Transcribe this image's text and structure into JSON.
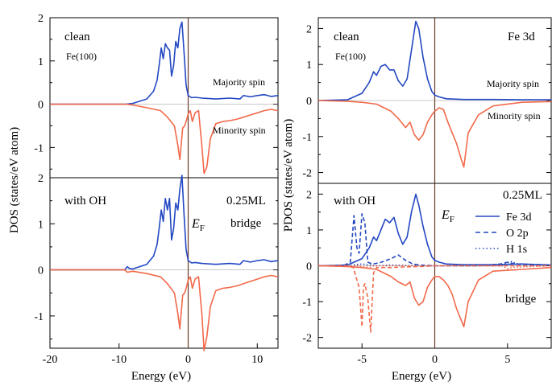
{
  "colors": {
    "majority": "#2348c3",
    "minority": "#f2694a",
    "axis": "#000000",
    "fermi": "#6b3a2a"
  },
  "left": {
    "ylabel": "DOS (states/eV atom)",
    "xlabel": "Energy (eV)",
    "xticks": [
      "-20",
      "-10",
      "0",
      "10"
    ],
    "top": {
      "yticks": [
        "2",
        "1",
        "0",
        "-1"
      ],
      "labels": {
        "title": "clean",
        "sub": "Fe(100)",
        "maj": "Majority spin",
        "min": "Minority spin"
      }
    },
    "bottom": {
      "yticks": [
        "2",
        "1",
        "0",
        "-1"
      ],
      "labels": {
        "title": "with OH",
        "coverage": "0.25ML",
        "site": "bridge",
        "ef": "E",
        "ef_sub": "F"
      }
    }
  },
  "right": {
    "ylabel": "PDOS (states/eV atom)",
    "xlabel": "Energy (eV)",
    "xticks": [
      "-5",
      "0",
      "5"
    ],
    "top": {
      "yticks": [
        "2",
        "1",
        "0",
        "-1",
        "-2"
      ],
      "labels": {
        "title": "clean",
        "sub": "Fe(100)",
        "orbital": "Fe 3d",
        "maj": "Majority spin",
        "min": "Minority spin"
      }
    },
    "bottom": {
      "yticks": [
        "2",
        "1",
        "0",
        "-1",
        "-2"
      ],
      "labels": {
        "title": "with OH",
        "coverage": "0.25ML",
        "site": "bridge",
        "ef": "E",
        "ef_sub": "F"
      },
      "legend": [
        "Fe 3d",
        "O 2p",
        "H 1s"
      ]
    }
  },
  "chart_data": [
    {
      "type": "line",
      "panel": "left-top",
      "xlabel": "Energy (eV)",
      "ylabel": "DOS (states/eV atom)",
      "xlim": [
        -20,
        13
      ],
      "ylim": [
        -1.7,
        2.0
      ],
      "series": [
        {
          "name": "Majority spin",
          "x": [
            -20,
            -9,
            -8,
            -6,
            -5,
            -4.5,
            -4.2,
            -3.9,
            -3.6,
            -3.3,
            -3.0,
            -2.7,
            -2.4,
            -2.1,
            -1.8,
            -1.5,
            -1.2,
            -0.9,
            -0.6,
            -0.3,
            0,
            0.5,
            1,
            2,
            4,
            6,
            7.5,
            8,
            9,
            10,
            11,
            12,
            13
          ],
          "y": [
            0,
            0,
            0.02,
            0.12,
            0.3,
            0.55,
            0.9,
            1.3,
            1.05,
            1.4,
            1.3,
            1.25,
            0.65,
            0.9,
            1.45,
            1.3,
            1.75,
            1.9,
            1.2,
            0.45,
            0.2,
            0.15,
            0.16,
            0.14,
            0.12,
            0.14,
            0.12,
            0.2,
            0.17,
            0.2,
            0.22,
            0.18,
            0.2
          ]
        },
        {
          "name": "Minority spin",
          "x": [
            -20,
            -9,
            -8,
            -6,
            -4,
            -3,
            -2,
            -1.5,
            -1.2,
            -0.8,
            -0.5,
            -0.2,
            0,
            0.3,
            0.6,
            1.0,
            1.5,
            2.0,
            2.3,
            2.7,
            3.2,
            4,
            5,
            6,
            7,
            8,
            9,
            10,
            11,
            12,
            13
          ],
          "y": [
            0,
            0,
            -0.02,
            -0.08,
            -0.15,
            -0.3,
            -0.5,
            -0.95,
            -1.28,
            -0.55,
            -0.5,
            -0.35,
            -0.22,
            -0.15,
            -0.4,
            -0.2,
            -0.15,
            -1.0,
            -1.6,
            -1.45,
            -0.8,
            -0.45,
            -0.4,
            -0.38,
            -0.35,
            -0.3,
            -0.25,
            -0.2,
            -0.15,
            -0.12,
            -0.15
          ]
        }
      ]
    },
    {
      "type": "line",
      "panel": "left-bottom",
      "xlabel": "Energy (eV)",
      "ylabel": "DOS (states/eV atom)",
      "xlim": [
        -20,
        13
      ],
      "ylim": [
        -1.7,
        2.0
      ],
      "series": [
        {
          "name": "Majority spin",
          "x": [
            -20,
            -9.2,
            -8.8,
            -8.5,
            -8,
            -6,
            -5,
            -4.5,
            -4.2,
            -3.9,
            -3.6,
            -3.3,
            -3.0,
            -2.7,
            -2.4,
            -2.1,
            -1.8,
            -1.5,
            -1.2,
            -0.9,
            -0.6,
            -0.3,
            0,
            0.5,
            1,
            2,
            4,
            6,
            7.5,
            8,
            9,
            10,
            11,
            12,
            13
          ],
          "y": [
            0,
            0,
            0.07,
            0.03,
            0.02,
            0.12,
            0.3,
            0.55,
            0.9,
            1.3,
            1.05,
            1.55,
            1.3,
            1.55,
            0.65,
            0.9,
            1.45,
            1.3,
            1.75,
            2.05,
            1.2,
            0.45,
            0.2,
            0.15,
            0.16,
            0.14,
            0.12,
            0.14,
            0.12,
            0.2,
            0.17,
            0.2,
            0.22,
            0.18,
            0.2
          ]
        },
        {
          "name": "Minority spin",
          "x": [
            -20,
            -9.2,
            -8.8,
            -8,
            -6,
            -4,
            -3,
            -2,
            -1.5,
            -1.2,
            -0.8,
            -0.5,
            -0.2,
            0,
            0.3,
            0.6,
            1.0,
            1.5,
            2.0,
            2.3,
            2.7,
            3.2,
            4,
            5,
            6,
            7,
            8,
            9,
            10,
            11,
            12,
            13
          ],
          "y": [
            0,
            0,
            -0.05,
            -0.03,
            -0.08,
            -0.15,
            -0.3,
            -0.5,
            -0.95,
            -1.28,
            -0.55,
            -0.5,
            -0.35,
            -0.22,
            -0.15,
            -0.4,
            -0.2,
            -0.15,
            -1.0,
            -1.75,
            -1.45,
            -0.8,
            -0.45,
            -0.4,
            -0.38,
            -0.35,
            -0.3,
            -0.25,
            -0.2,
            -0.15,
            -0.12,
            -0.15
          ]
        }
      ]
    },
    {
      "type": "line",
      "panel": "right-top",
      "xlabel": "Energy (eV)",
      "ylabel": "PDOS (states/eV atom)",
      "xlim": [
        -8,
        8
      ],
      "ylim": [
        -2.3,
        2.3
      ],
      "series": [
        {
          "name": "Majority spin",
          "x": [
            -8,
            -6,
            -5,
            -4.5,
            -4.2,
            -4.0,
            -3.7,
            -3.4,
            -3.1,
            -2.8,
            -2.5,
            -2.2,
            -1.9,
            -1.6,
            -1.3,
            -1.1,
            -0.8,
            -0.5,
            -0.2,
            0,
            0.3,
            0.8,
            2,
            4,
            6,
            8
          ],
          "y": [
            0,
            0.02,
            0.2,
            0.5,
            0.8,
            0.7,
            0.95,
            1.0,
            0.85,
            0.85,
            0.55,
            0.4,
            0.6,
            1.4,
            2.2,
            2.0,
            1.2,
            0.6,
            0.25,
            0.15,
            0.1,
            0.05,
            0.03,
            0.03,
            0.02,
            0.02
          ]
        },
        {
          "name": "Minority spin",
          "x": [
            -8,
            -6,
            -5,
            -4,
            -3,
            -2.5,
            -2.0,
            -1.7,
            -1.4,
            -1.1,
            -0.8,
            -0.5,
            -0.2,
            0,
            0.3,
            0.6,
            0.9,
            1.2,
            1.5,
            1.8,
            2.0,
            2.3,
            3,
            4,
            6,
            8
          ],
          "y": [
            0,
            -0.02,
            -0.05,
            -0.1,
            -0.3,
            -0.5,
            -0.75,
            -0.6,
            -0.95,
            -1.1,
            -0.95,
            -0.6,
            -0.4,
            -0.3,
            -0.2,
            -0.25,
            -0.6,
            -0.9,
            -1.2,
            -1.6,
            -1.85,
            -0.9,
            -0.4,
            -0.15,
            -0.05,
            -0.03
          ]
        }
      ]
    },
    {
      "type": "line",
      "panel": "right-bottom",
      "xlabel": "Energy (eV)",
      "ylabel": "PDOS (states/eV atom)",
      "xlim": [
        -8,
        8
      ],
      "ylim": [
        -2.3,
        2.3
      ],
      "series": [
        {
          "name": "Fe 3d",
          "x": [
            -8,
            -6,
            -5,
            -4.5,
            -4.2,
            -4.0,
            -3.7,
            -3.4,
            -3.1,
            -2.8,
            -2.5,
            -2.2,
            -1.9,
            -1.6,
            -1.3,
            -1.1,
            -0.8,
            -0.5,
            -0.2,
            0,
            0.3,
            0.8,
            2,
            4,
            6,
            8
          ],
          "y": [
            0,
            0.02,
            0.2,
            0.5,
            0.8,
            0.7,
            1.0,
            1.3,
            1.2,
            1.35,
            0.9,
            0.6,
            0.8,
            1.5,
            2.0,
            1.7,
            1.1,
            0.6,
            0.25,
            0.15,
            0.1,
            0.05,
            0.03,
            0.03,
            0.05,
            0.02
          ]
        },
        {
          "name": "O 2p",
          "x": [
            -8,
            -6.3,
            -5.8,
            -5.55,
            -5.35,
            -5.2,
            -5.0,
            -4.8,
            -4.6,
            -4.3,
            -3.8,
            -3.0,
            -2.5,
            -2.0,
            -1.5,
            -1.0,
            0,
            3,
            4.5,
            5,
            5.5,
            8
          ],
          "y": [
            0,
            0,
            0.1,
            1.4,
            0.5,
            0.35,
            1.45,
            1.2,
            0.1,
            0.05,
            0.08,
            0.2,
            0.3,
            0.15,
            0.05,
            0.02,
            0.0,
            0.0,
            0.05,
            0.1,
            0.05,
            0.0
          ]
        },
        {
          "name": "H 1s",
          "x": [
            -8,
            -6,
            -5.5,
            -5.0,
            -4.6,
            -4.0,
            -3.0,
            -2.0,
            0,
            4.5,
            5.0,
            5.3,
            5.6,
            8
          ],
          "y": [
            0,
            0,
            0.03,
            0.05,
            0.03,
            0.0,
            0.02,
            0.01,
            0,
            0,
            0.08,
            0.12,
            0.06,
            0
          ]
        },
        {
          "name": "Fe 3d minority",
          "x": [
            -8,
            -6,
            -5,
            -4,
            -3,
            -2.5,
            -2.0,
            -1.7,
            -1.4,
            -1.1,
            -0.8,
            -0.5,
            -0.2,
            0,
            0.3,
            0.6,
            0.9,
            1.2,
            1.5,
            1.8,
            2.0,
            2.3,
            3,
            4,
            6,
            8
          ],
          "y": [
            0,
            -0.02,
            -0.05,
            -0.1,
            -0.3,
            -0.45,
            -0.55,
            -0.45,
            -0.9,
            -1.1,
            -1.0,
            -0.6,
            -0.4,
            -0.3,
            -0.3,
            -0.4,
            -0.55,
            -0.8,
            -1.2,
            -1.5,
            -1.7,
            -1.0,
            -0.4,
            -0.15,
            -0.1,
            -0.05
          ]
        },
        {
          "name": "O 2p minority",
          "x": [
            -8,
            -6,
            -5.6,
            -5.2,
            -5.0,
            -4.9,
            -4.8,
            -4.6,
            -4.4,
            -4.3,
            -4.2,
            -4.0,
            -3.0,
            -2.0,
            -1.0,
            0,
            3,
            5,
            8
          ],
          "y": [
            0,
            0,
            -0.05,
            -0.6,
            -1.7,
            -0.6,
            -0.5,
            -0.9,
            -1.85,
            -1.0,
            -0.2,
            -0.05,
            -0.05,
            -0.03,
            -0.02,
            0,
            0,
            0,
            0
          ]
        },
        {
          "name": "H 1s minority",
          "x": [
            -8,
            -5.2,
            -5.0,
            -4.4,
            -4.2,
            0,
            4.6,
            5.0,
            5.4,
            8
          ],
          "y": [
            0,
            0,
            -0.03,
            -0.04,
            0,
            0,
            0,
            -0.08,
            -0.04,
            0
          ]
        }
      ]
    }
  ]
}
